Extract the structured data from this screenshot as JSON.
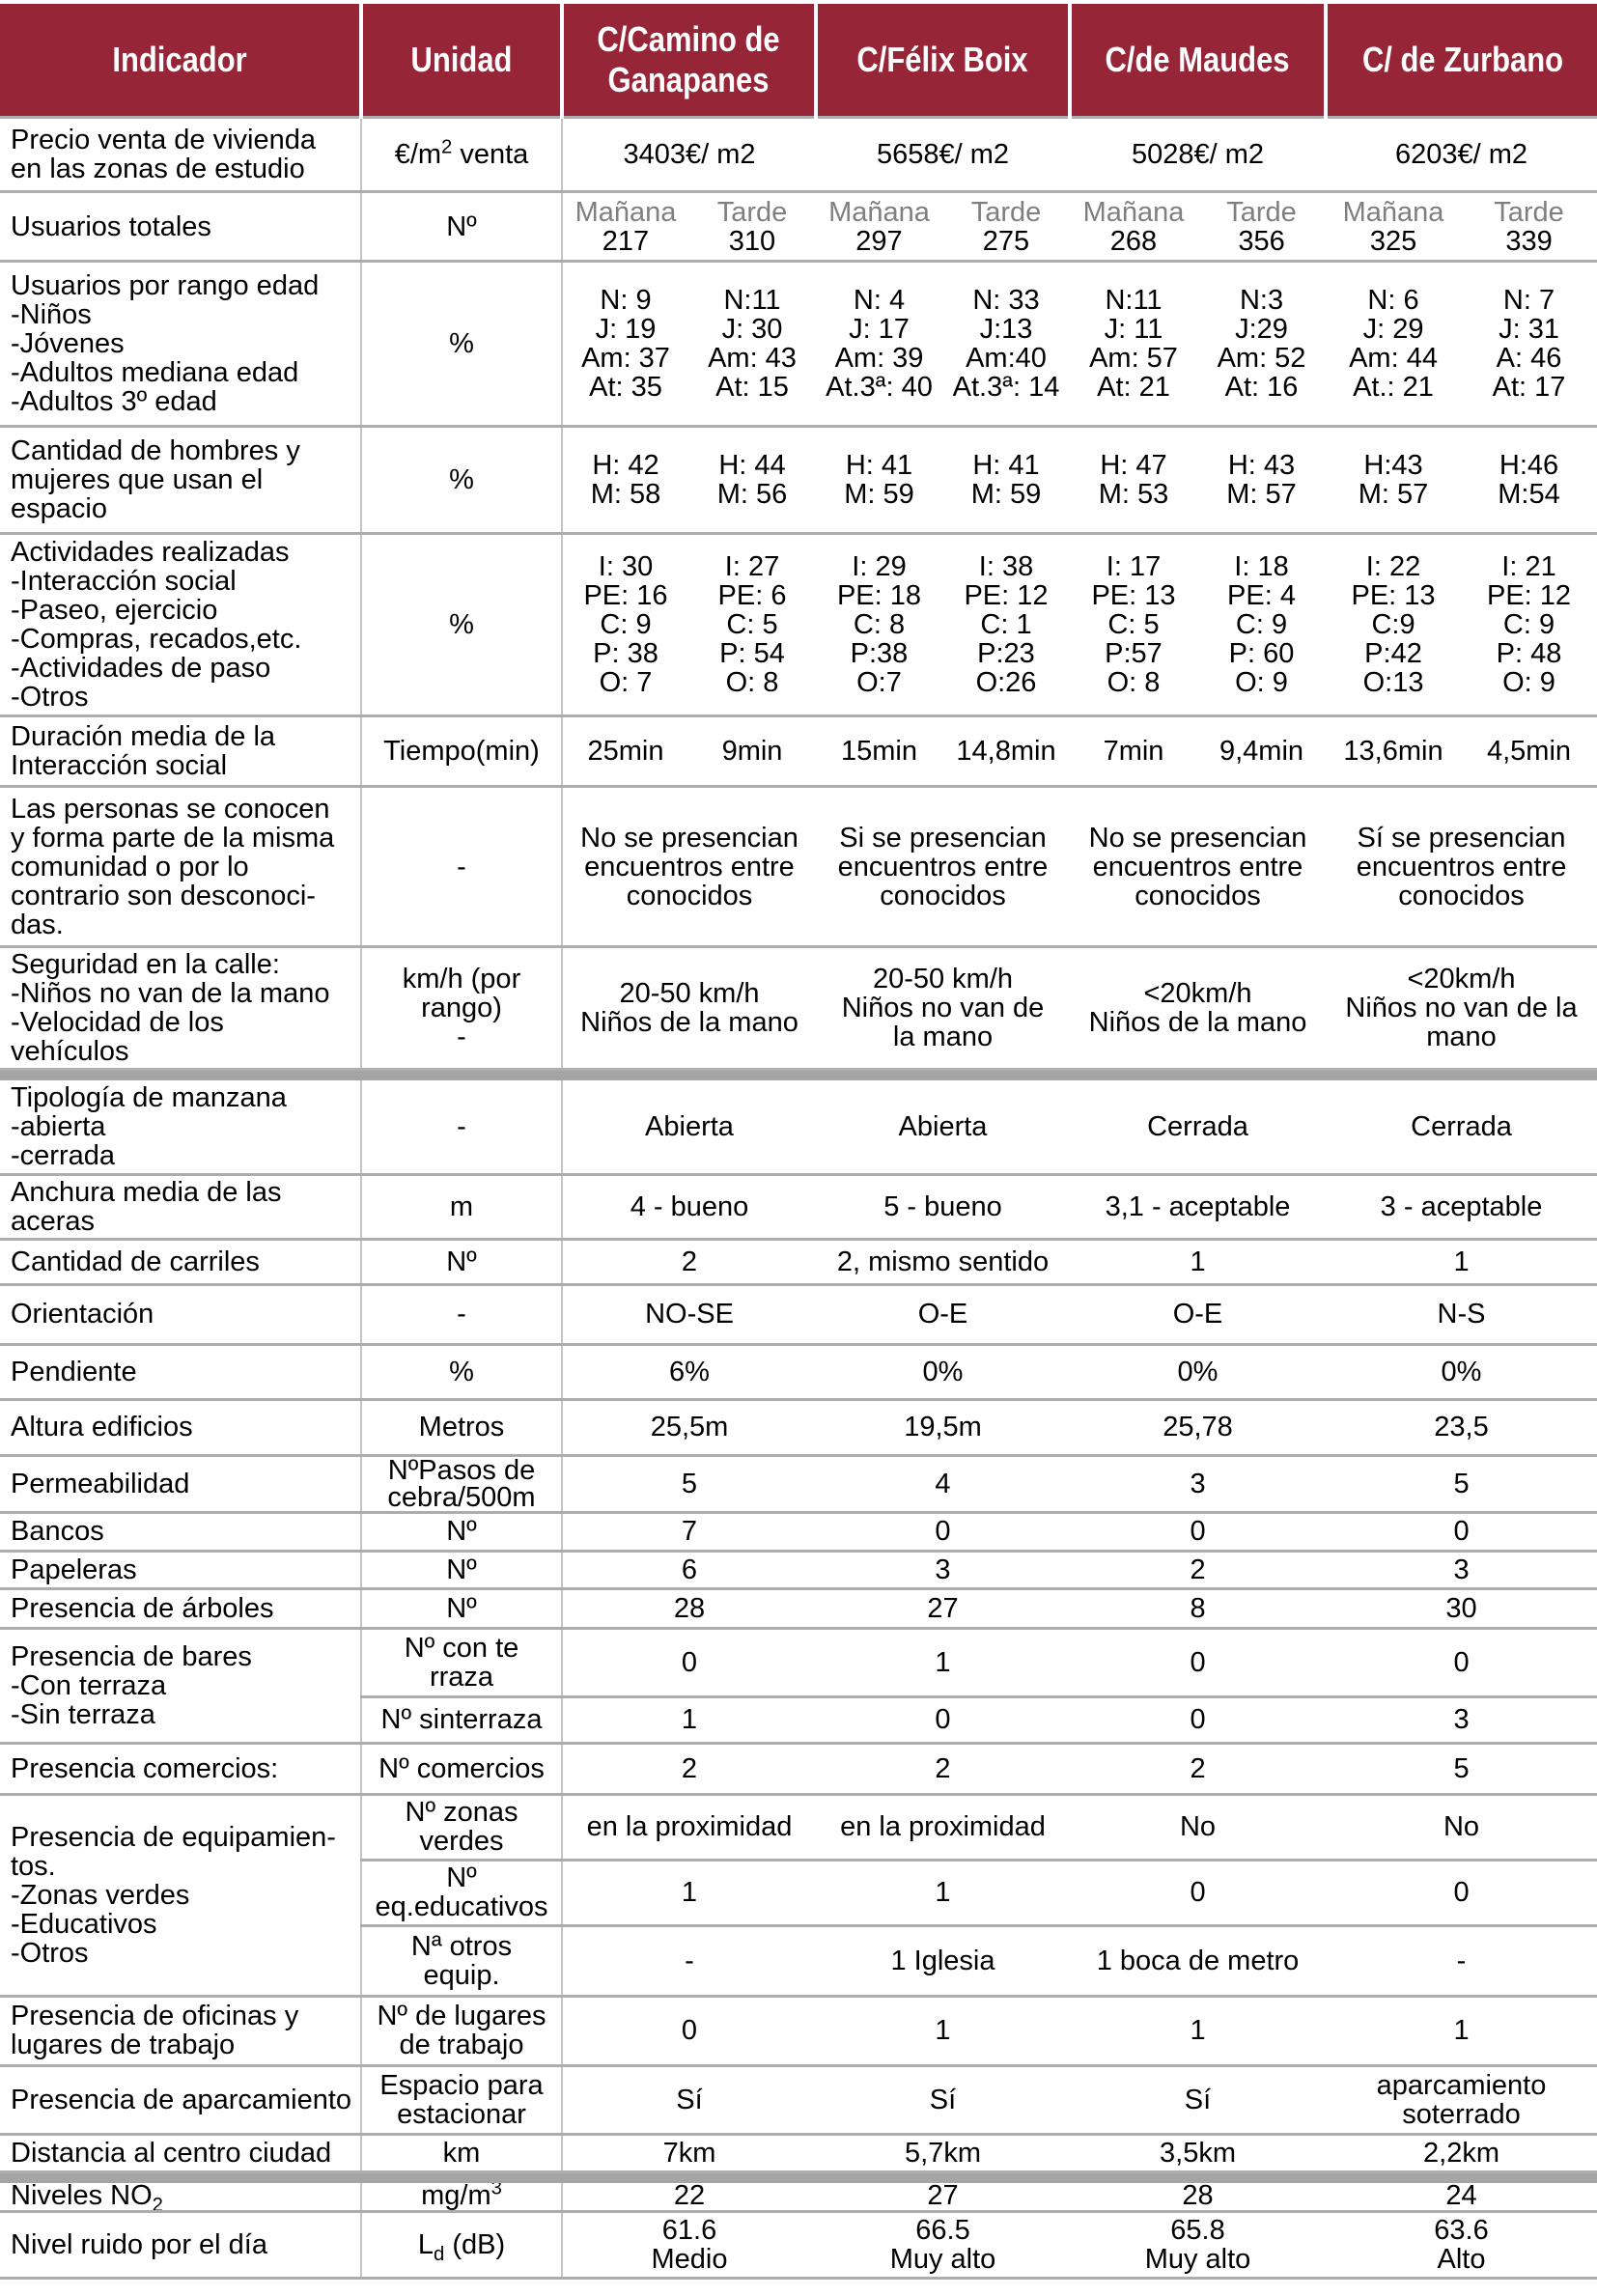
{
  "colors": {
    "header_bg": "#952537",
    "vgrid": "#c4c4c4",
    "header_text": "#ffffff",
    "grid": "#adadad",
    "bar": "#a5a5a5",
    "subheader_text": "#7f7f7f",
    "text": "#000000"
  },
  "header": {
    "cells": [
      "Indicador",
      "Unidad",
      "C/Camino de\nGanapanes",
      "C/Félix Boix",
      "C/de Maudes",
      "C/ de Zurbano"
    ]
  },
  "streets": [
    "ganapanes",
    "felix-boix",
    "maudes",
    "zurbano"
  ],
  "rows": [
    {
      "id": "precio",
      "type": "merged",
      "h": 77,
      "indicator": "Precio venta de vivienda\nen las zonas de estudio",
      "unit": "€/m^2^ venta",
      "values": [
        "3403€/ m2",
        "5658€/ m2",
        "5028€/ m2",
        "6203€/ m2"
      ]
    },
    {
      "id": "usuarios-totales",
      "type": "users",
      "h": 72,
      "indicator": "Usuarios totales",
      "unit": "Nº",
      "sublabels": [
        "Mañana",
        "Tarde"
      ],
      "values": [
        "217",
        "310",
        "297",
        "275",
        "268",
        "356",
        "325",
        "339"
      ]
    },
    {
      "id": "rango-edad",
      "type": "split",
      "h": 171,
      "indicator": "Usuarios por rango edad\n-Niños\n-Jóvenes\n-Adultos mediana edad\n-Adultos 3º edad",
      "unit": "%",
      "values": [
        "N: 9\nJ: 19\nAm: 37\nAt: 35",
        "N:11\nJ: 30\nAm: 43\nAt: 15",
        "N: 4\nJ: 17\nAm: 39\nAt.3ª: 40",
        "N: 33\nJ:13\nAm:40\nAt.3ª: 14",
        "N:11\nJ: 11\nAm: 57\nAt: 21",
        "N:3\nJ:29\nAm: 52\nAt: 16",
        "N: 6\nJ: 29\nAm: 44\nAt.: 21",
        "N: 7\nJ: 31\nA: 46\nAt: 17"
      ]
    },
    {
      "id": "hombres-mujeres",
      "type": "split",
      "h": 111,
      "indicator": "Cantidad de hombres y\nmujeres que usan el\nespacio",
      "unit": "%",
      "values": [
        "H: 42\nM: 58",
        "H: 44\nM: 56",
        "H: 41\nM: 59",
        "H: 41\nM: 59",
        "H: 47\nM: 53",
        "H: 43\nM: 57",
        "H:43\nM: 57",
        "H:46\nM:54"
      ]
    },
    {
      "id": "actividades",
      "type": "split",
      "h": 189,
      "indicator": "Actividades realizadas\n-Interacción social\n-Paseo, ejercicio\n-Compras, recados,etc.\n-Actividades de paso\n-Otros",
      "unit": "%",
      "values": [
        "I: 30\nPE: 16\nC: 9\nP: 38\nO: 7",
        "I: 27\nPE: 6\nC: 5\nP: 54\nO: 8",
        "I: 29\nPE: 18\nC: 8\nP:38\nO:7",
        "I: 38\nPE: 12\nC: 1\nP:23\nO:26",
        "I: 17\nPE: 13\nC: 5\nP:57\nO: 8",
        "I: 18\nPE: 4\nC: 9\nP: 60\nO: 9",
        "I: 22\nPE: 13\nC:9\nP:42\nO:13",
        "I: 21\nPE: 12\nC: 9\nP: 48\nO: 9"
      ]
    },
    {
      "id": "duracion",
      "type": "split",
      "h": 73,
      "indicator": "Duración media de la\nInteracción social",
      "unit": "Tiempo(min)",
      "values": [
        "25min",
        "9min",
        "15min",
        "14,8min",
        "7min",
        "9,4min",
        "13,6min",
        "4,5min"
      ]
    },
    {
      "id": "personas-conocen",
      "type": "merged",
      "h": 166,
      "indicator": "Las personas se conocen\ny forma parte de la misma\ncomunidad o por lo\ncontrario son desconoci-\ndas.",
      "unit": "-",
      "values": [
        "No se presencian\nencuentros entre\nconocidos",
        "Si se presencian\nencuentros entre\nconocidos",
        "No se presencian\nencuentros entre\nconocidos",
        "Sí se presencian\nencuentros entre\nconocidos"
      ]
    },
    {
      "id": "seguridad",
      "type": "merged",
      "h": 127,
      "indicator": "Seguridad en la calle:\n-Niños no van de la mano\n-Velocidad de los\nvehículos",
      "unit": "km/h (por\nrango)\n-",
      "values": [
        "20-50 km/h\nNiños de la mano",
        "20-50 km/h\nNiños no van de\nla mano",
        "<20km/h\nNiños de la mano",
        "<20km/h\nNiños no van de la\nmano"
      ]
    },
    {
      "id": "separator-1",
      "type": "bar",
      "h": 11
    },
    {
      "id": "tipologia",
      "type": "merged",
      "h": 97,
      "indicator": "Tipología de manzana\n-abierta\n-cerrada",
      "unit": "-",
      "values": [
        "Abierta",
        "Abierta",
        "Cerrada",
        "Cerrada"
      ]
    },
    {
      "id": "anchura-aceras",
      "type": "merged",
      "h": 67,
      "indicator": "Anchura media de las\naceras",
      "unit": "m",
      "values": [
        "4 - bueno",
        "5 - bueno",
        "3,1 - aceptable",
        "3 - aceptable"
      ]
    },
    {
      "id": "carriles",
      "type": "merged",
      "h": 47,
      "indicator": "Cantidad de carriles",
      "unit": "Nº",
      "values": [
        "2",
        "2, mismo sentido",
        "1",
        "1"
      ]
    },
    {
      "id": "orientacion",
      "type": "merged",
      "h": 62,
      "indicator": "Orientación",
      "unit": "-",
      "values": [
        "NO-SE",
        "O-E",
        "O-E",
        "N-S"
      ]
    },
    {
      "id": "pendiente",
      "type": "merged",
      "h": 57,
      "indicator": "Pendiente",
      "unit": "%",
      "values": [
        "6%",
        "0%",
        "0%",
        "0%"
      ]
    },
    {
      "id": "altura-edificios",
      "type": "merged",
      "h": 58,
      "indicator": "Altura edificios",
      "unit": "Metros",
      "values": [
        "25,5m",
        "19,5m",
        "25,78",
        "23,5"
      ]
    },
    {
      "id": "permeabilidad",
      "type": "merged",
      "h": 59,
      "lh": 28,
      "indicator": "Permeabilidad",
      "unit": "NºPasos de\ncebra/500m",
      "values": [
        "5",
        "4",
        "3",
        "5"
      ]
    },
    {
      "id": "bancos",
      "type": "merged",
      "h": 40,
      "indicator": "Bancos",
      "unit": "Nº",
      "values": [
        "7",
        "0",
        "0",
        "0"
      ]
    },
    {
      "id": "papeleras",
      "type": "merged",
      "h": 39,
      "indicator": "Papeleras",
      "unit": "Nº",
      "values": [
        "6",
        "3",
        "2",
        "3"
      ]
    },
    {
      "id": "arboles",
      "type": "merged",
      "h": 41,
      "indicator": "Presencia de árboles",
      "unit": "Nº",
      "values": [
        "28",
        "27",
        "8",
        "30"
      ]
    },
    {
      "id": "bares",
      "type": "group",
      "indicator": "Presencia de bares\n-Con terraza\n-Sin terraza",
      "subrows": [
        {
          "id": "bares-con-terraza",
          "h": 71,
          "unit": "Nº con te\nrraza",
          "values": [
            "0",
            "1",
            "0",
            "0"
          ]
        },
        {
          "id": "bares-sin-terraza",
          "h": 48,
          "unit": "Nº sinterraza",
          "values": [
            "1",
            "0",
            "0",
            "3"
          ]
        }
      ]
    },
    {
      "id": "comercios",
      "type": "merged",
      "h": 53,
      "indicator": "Presencia comercios:",
      "unit": "Nº comercios",
      "values": [
        "2",
        "2",
        "2",
        "5"
      ]
    },
    {
      "id": "equipamientos",
      "type": "group",
      "indicator": "Presencia de equipamien-\ntos.\n-Zonas verdes\n-Educativos\n-Otros",
      "subrows": [
        {
          "id": "zonas-verdes",
          "h": 68,
          "unit": "Nº zonas\nverdes",
          "values": [
            "en la proximidad",
            "en la proximidad",
            "No",
            "No"
          ]
        },
        {
          "id": "eq-educativos",
          "h": 68,
          "unit": "Nº\neq.educativos",
          "values": [
            "1",
            "1",
            "0",
            "0"
          ]
        },
        {
          "id": "otros-equip",
          "h": 73,
          "unit": "Nª otros\nequip.",
          "values": [
            "-",
            "1 Iglesia",
            "1 boca de metro",
            "-"
          ]
        }
      ]
    },
    {
      "id": "oficinas",
      "type": "merged",
      "h": 72,
      "indicator": "Presencia de oficinas y\nlugares de trabajo",
      "unit": "Nº de lugares\nde trabajo",
      "values": [
        "0",
        "1",
        "1",
        "1"
      ]
    },
    {
      "id": "aparcamiento",
      "type": "merged",
      "h": 71,
      "indicator": "Presencia de aparcamiento",
      "unit": "Espacio para\nestacionar",
      "values": [
        "Sí",
        "Sí",
        "Sí",
        "aparcamiento\nsoterrado"
      ]
    },
    {
      "id": "distancia-centro",
      "type": "merged",
      "h": 39,
      "indicator": "Distancia al centro ciudad",
      "unit": "km",
      "values": [
        "7km",
        "5,7km",
        "3,5km",
        "2,2km"
      ]
    },
    {
      "id": "separator-2",
      "type": "bar",
      "h": 11
    },
    {
      "id": "niveles-no2",
      "type": "merged",
      "h": 30,
      "lh": 27,
      "indicator": "Niveles NO~2~",
      "unit": "mg/m^3^",
      "values": [
        "22",
        "27",
        "28",
        "24"
      ]
    },
    {
      "id": "nivel-ruido",
      "type": "merged",
      "h": 69,
      "indicator": "Nivel ruido por el día",
      "unit": "L~d~ (dB)",
      "values": [
        "61.6\nMedio",
        "66.5\nMuy alto",
        "65.8\nMuy alto",
        "63.6\nAlto"
      ]
    }
  ]
}
